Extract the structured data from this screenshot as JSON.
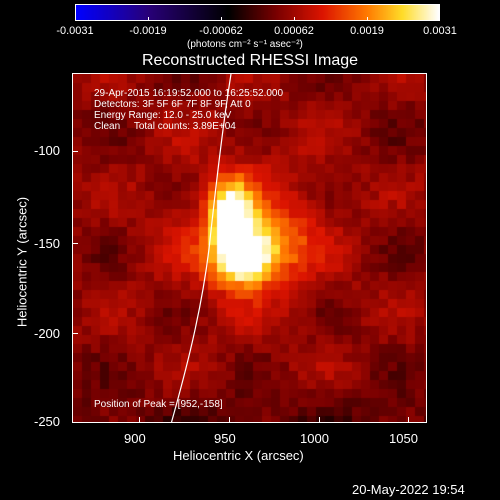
{
  "colorbar": {
    "tick_labels": [
      "-0.0031",
      "-0.0019",
      "-0.00062",
      "0.00062",
      "0.0019",
      "0.0031"
    ],
    "units": "(photons cm⁻² s⁻¹ asec⁻²)"
  },
  "title": "Reconstructed RHESSI Image",
  "info": {
    "time": "29-Apr-2015 16:19:52.000 to 16:25:52.000",
    "detectors": "Detectors: 3F 5F 6F 7F 8F 9F, Att 0",
    "energy": "Energy Range: 12.0 - 25.0 keV",
    "clean": "Clean     Total counts: 3.89E+04",
    "peak": "Position of Peak = [952,-158]"
  },
  "axes": {
    "x_title": "Heliocentric X (arcsec)",
    "y_title": "Heliocentric Y (arcsec)",
    "x_ticks": [
      "900",
      "950",
      "1000",
      "1050"
    ],
    "y_ticks": [
      "-100",
      "-150",
      "-200",
      "-250"
    ]
  },
  "footer": "20-May-2022 19:54"
}
